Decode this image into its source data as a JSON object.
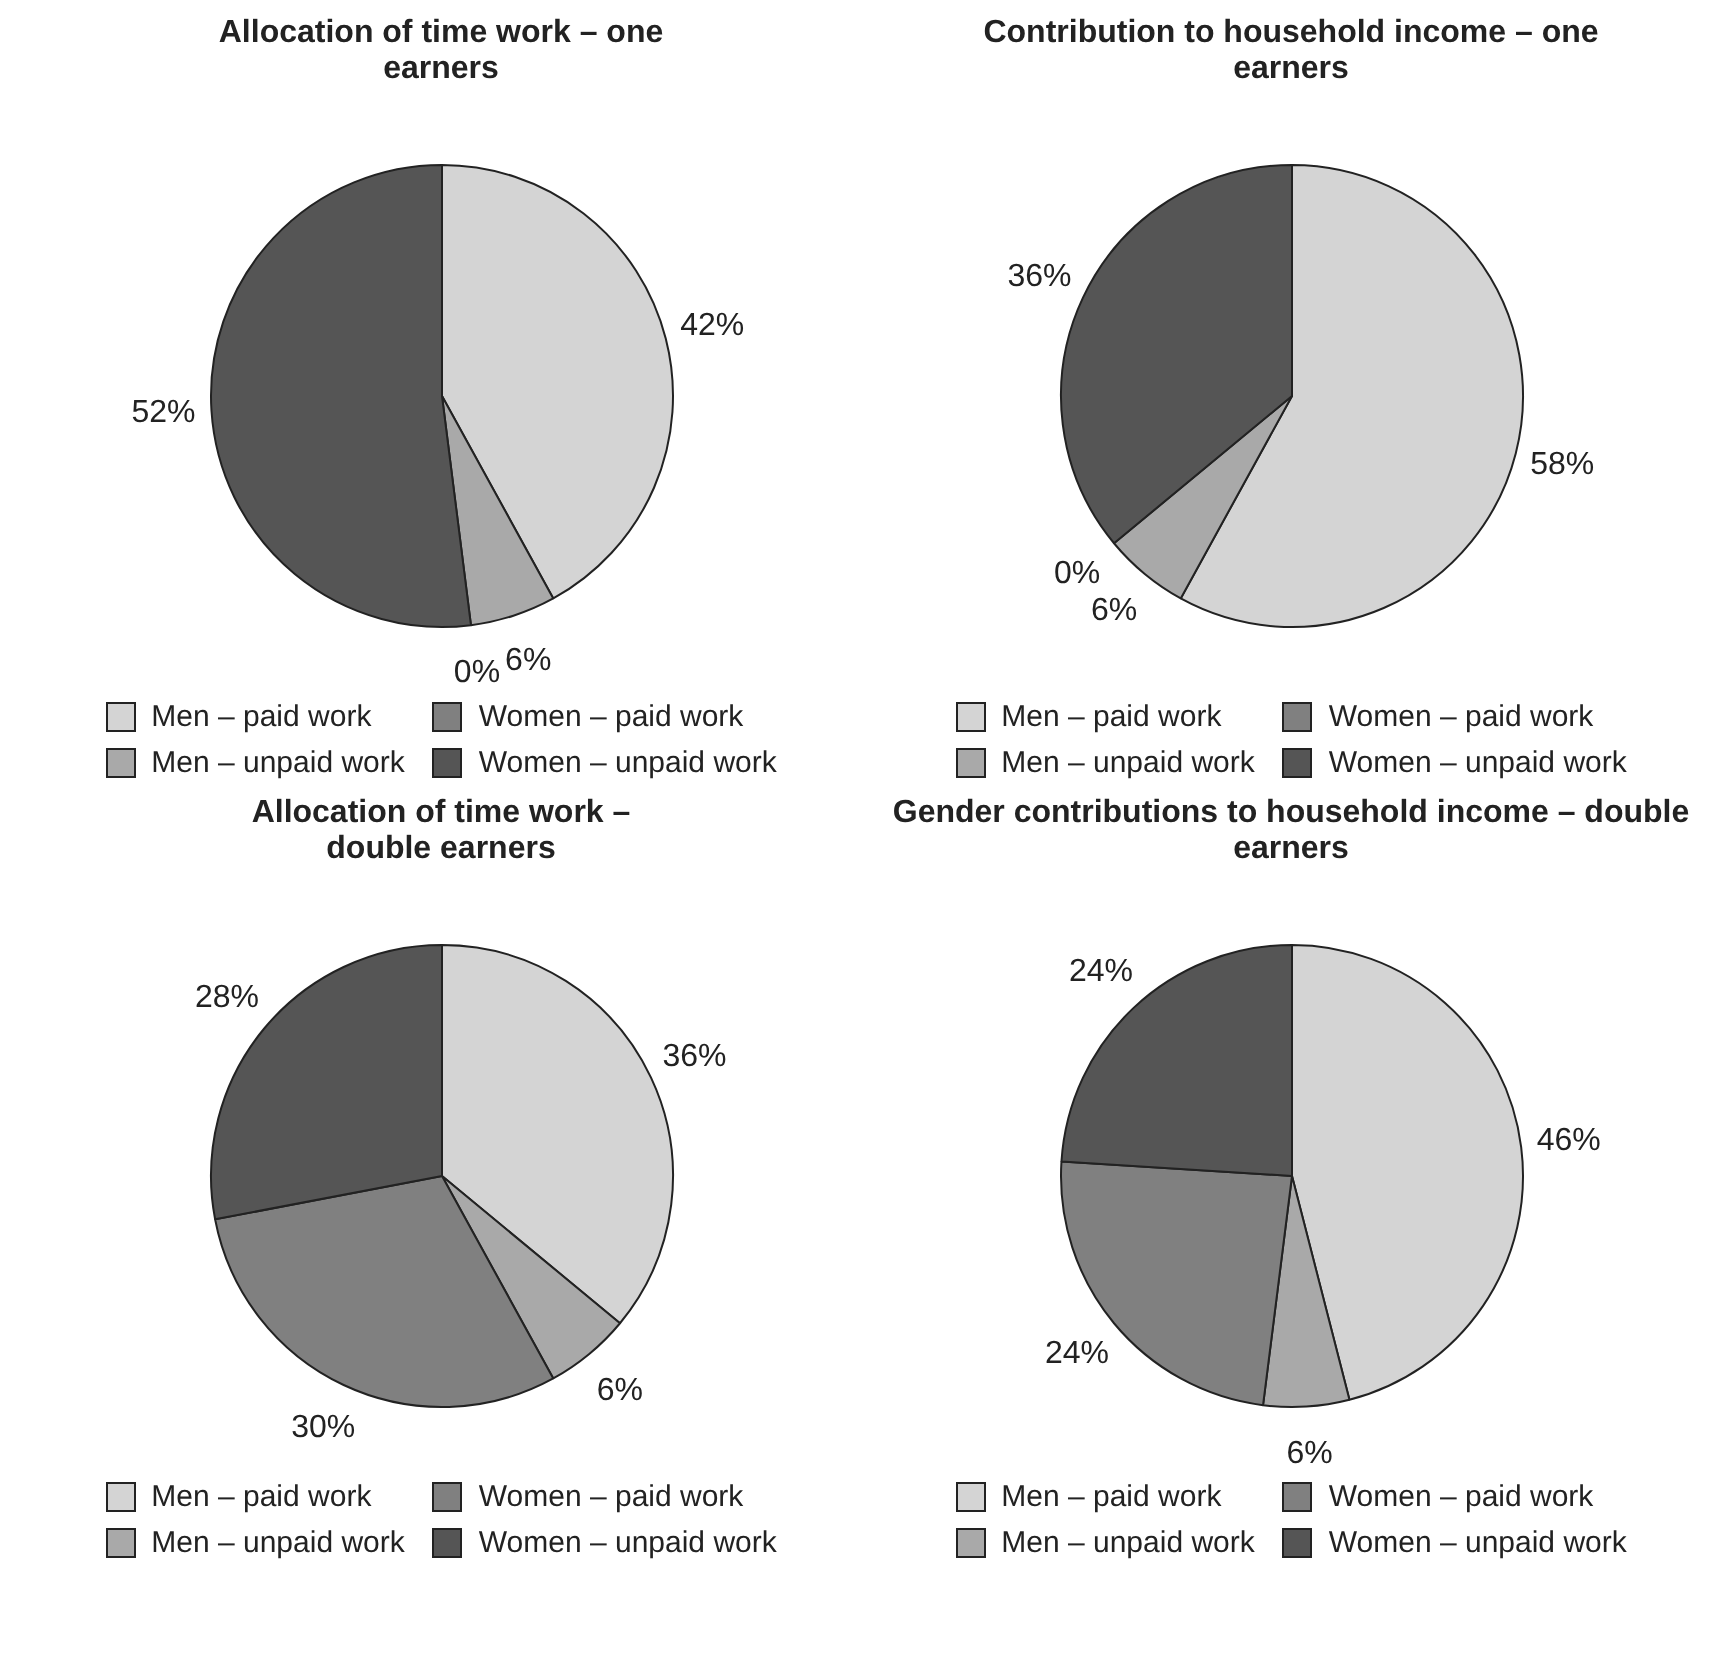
{
  "chart_data": [
    {
      "type": "pie",
      "title": "Allocation of time work – one earners",
      "categories": [
        "Men – paid work",
        "Men – unpaid work",
        "Women – paid work",
        "Women – unpaid work"
      ],
      "values": [
        42,
        6,
        0,
        52
      ],
      "value_labels": [
        "42%",
        "6%",
        "0%",
        "52%"
      ],
      "colors": [
        "#d4d4d4",
        "#a9a9a9",
        "#808080",
        "#555555"
      ],
      "legend": "bottom"
    },
    {
      "type": "pie",
      "title": "Contribution to household income – one earners",
      "categories": [
        "Men – paid work",
        "Men – unpaid work",
        "Women – paid work",
        "Women – unpaid work"
      ],
      "values": [
        58,
        6,
        0,
        36
      ],
      "value_labels": [
        "58%",
        "6%",
        "0%",
        "36%"
      ],
      "colors": [
        "#d4d4d4",
        "#a9a9a9",
        "#808080",
        "#555555"
      ],
      "legend": "bottom"
    },
    {
      "type": "pie",
      "title": "Allocation of time work – double earners",
      "categories": [
        "Men – paid work",
        "Men – unpaid work",
        "Women – paid work",
        "Women – unpaid work"
      ],
      "values": [
        36,
        6,
        30,
        28
      ],
      "value_labels": [
        "36%",
        "6%",
        "30%",
        "28%"
      ],
      "colors": [
        "#d4d4d4",
        "#a9a9a9",
        "#808080",
        "#555555"
      ],
      "legend": "bottom"
    },
    {
      "type": "pie",
      "title": "Gender contributions to household income – double earners",
      "categories": [
        "Men – paid work",
        "Men – unpaid work",
        "Women – paid work",
        "Women – unpaid work"
      ],
      "values": [
        46,
        6,
        24,
        24
      ],
      "value_labels": [
        "46%",
        "6%",
        "24%",
        "24%"
      ],
      "colors": [
        "#d4d4d4",
        "#a9a9a9",
        "#808080",
        "#555555"
      ],
      "legend": "bottom"
    }
  ]
}
